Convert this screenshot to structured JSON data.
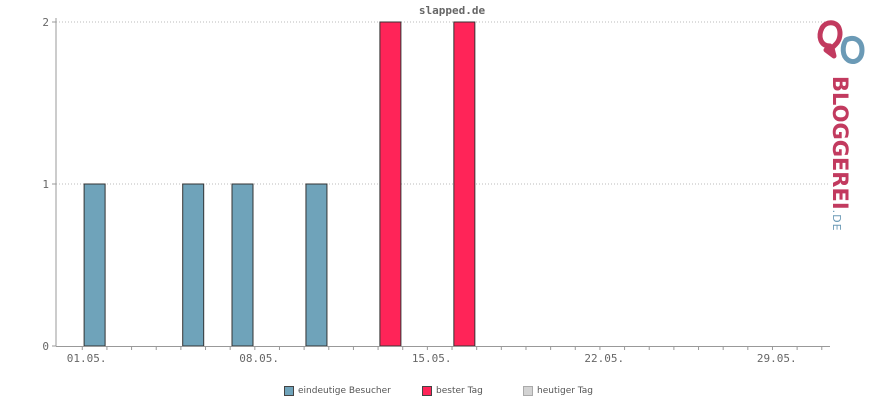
{
  "colors": {
    "unique_visitors": "#6fa3ba",
    "best_day": "#ff2458",
    "today": "#d3d3d3",
    "brand_red": "#c23a5f",
    "brand_blue": "#6b9ab6"
  },
  "brand": {
    "name": "BLOGGEREI",
    "tld": ".DE",
    "logo_icon": "bloggerei-logo-icon"
  },
  "chart_data": {
    "type": "bar",
    "title": "slapped.de",
    "xlabel": "",
    "ylabel": "",
    "x_range": [
      "2024-05-01",
      "2024-05-31"
    ],
    "x_tick_labels": [
      "01.05.",
      "08.05.",
      "15.05.",
      "22.05.",
      "29.05."
    ],
    "y_ticks": [
      "0",
      "1",
      "2"
    ],
    "ylim": [
      0,
      2
    ],
    "grid": true,
    "legend_position": "bottom",
    "series": [
      {
        "name": "eindeutige Besucher",
        "points": [
          {
            "x": 1,
            "y": 1
          },
          {
            "x": 5,
            "y": 1
          },
          {
            "x": 7,
            "y": 1
          },
          {
            "x": 10,
            "y": 1
          }
        ]
      },
      {
        "name": "bester Tag",
        "points": [
          {
            "x": 13,
            "y": 2
          },
          {
            "x": 16,
            "y": 2
          }
        ]
      },
      {
        "name": "heutiger Tag",
        "points": []
      }
    ]
  }
}
